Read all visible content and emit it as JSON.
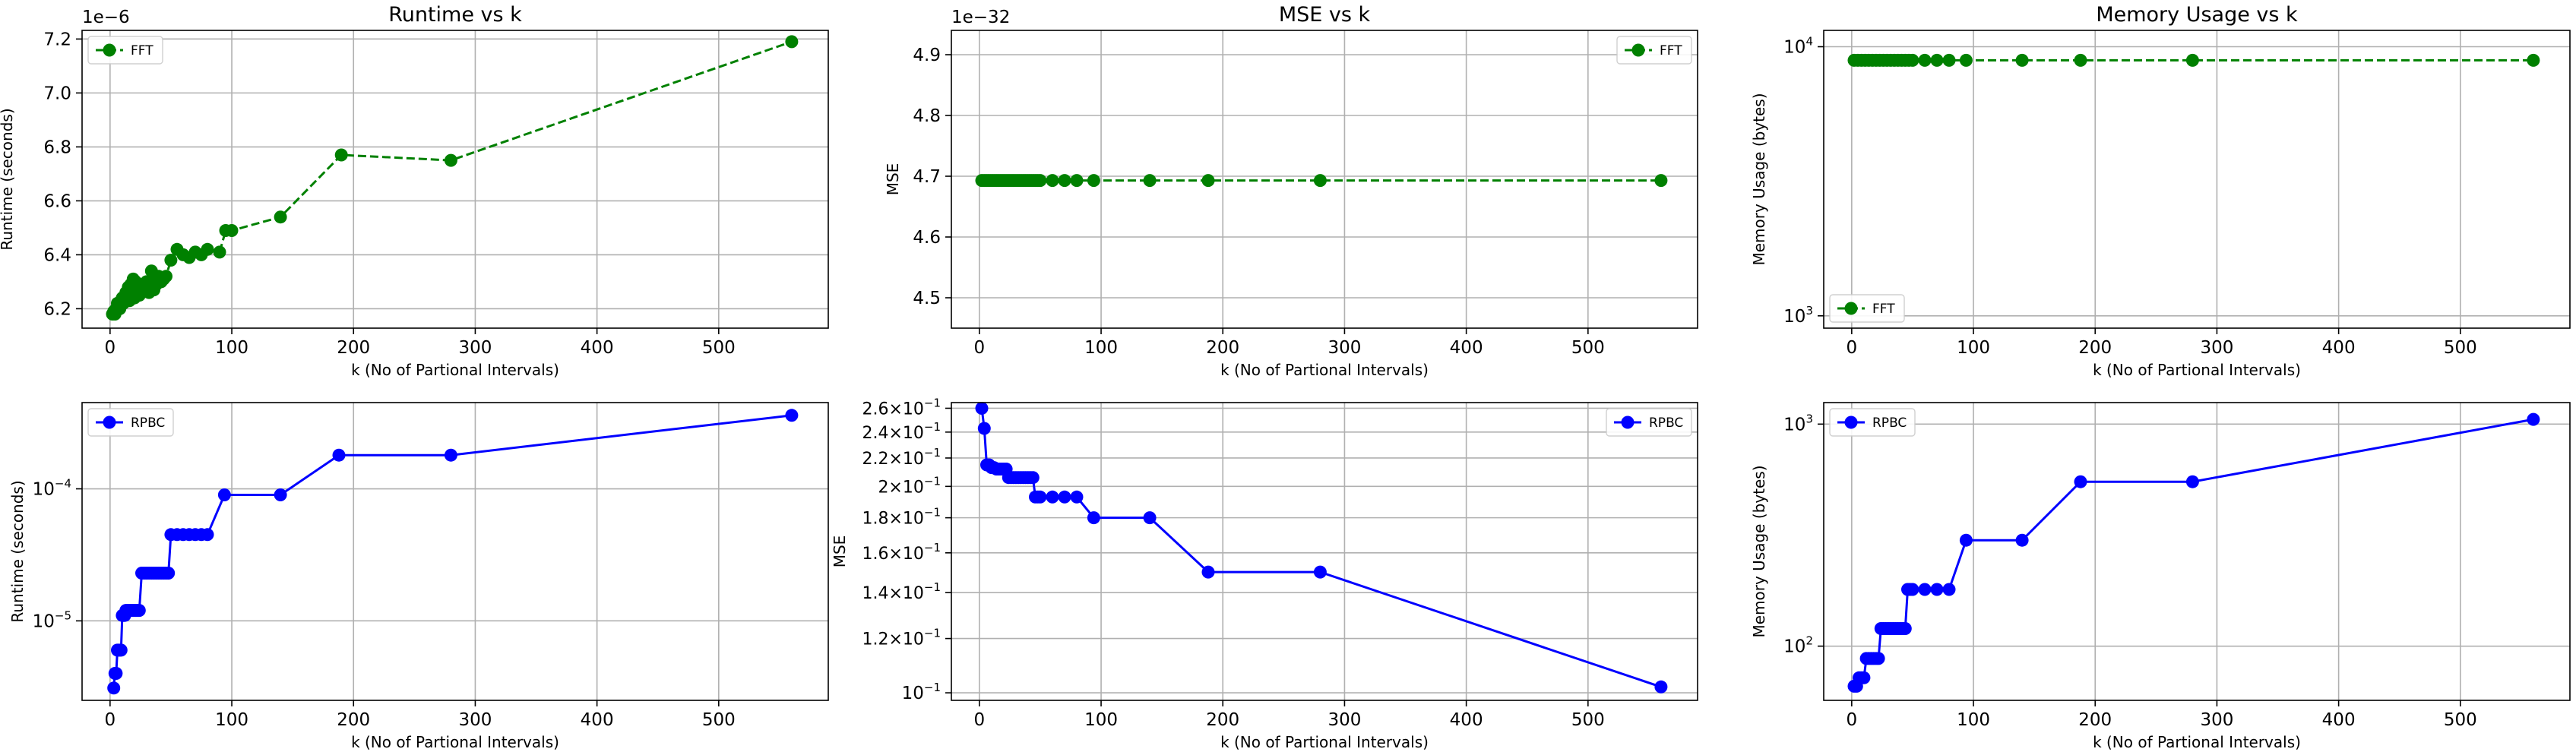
{
  "chart_data": [
    {
      "id": "runtime-fft",
      "type": "line",
      "title": "Runtime vs k",
      "xlabel": "k (No of Partional Intervals)",
      "ylabel": "Runtime (seconds)",
      "offset_text": "1e−6",
      "yscale": "linear",
      "xlim": [
        -23,
        590
      ],
      "ylim": [
        6.128,
        7.232
      ],
      "xticks": [
        0,
        100,
        200,
        300,
        400,
        500
      ],
      "xtick_labels": [
        "0",
        "100",
        "200",
        "300",
        "400",
        "500"
      ],
      "yticks": [
        6.2,
        6.4,
        6.6,
        6.8,
        7.0,
        7.2
      ],
      "ytick_labels": [
        "6.2",
        "6.4",
        "6.6",
        "6.8",
        "7.0",
        "7.2"
      ],
      "grid": true,
      "legend_position": "top-left",
      "series": [
        {
          "name": "FFT",
          "color": "#008000",
          "linestyle": "dashed",
          "x": [
            2,
            3,
            4,
            5,
            6,
            7,
            8,
            9,
            10,
            11,
            12,
            13,
            14,
            15,
            16,
            17,
            18,
            19,
            20,
            21,
            22,
            23,
            24,
            25,
            26,
            28,
            30,
            32,
            34,
            36,
            38,
            40,
            42,
            44,
            46,
            50,
            55,
            60,
            65,
            70,
            75,
            80,
            90,
            95,
            100,
            140,
            190,
            280,
            560
          ],
          "y": [
            6.18,
            6.19,
            6.18,
            6.2,
            6.22,
            6.21,
            6.2,
            6.23,
            6.24,
            6.22,
            6.24,
            6.26,
            6.25,
            6.28,
            6.23,
            6.29,
            6.26,
            6.31,
            6.24,
            6.3,
            6.28,
            6.27,
            6.25,
            6.29,
            6.26,
            6.27,
            6.3,
            6.26,
            6.34,
            6.27,
            6.29,
            6.32,
            6.3,
            6.31,
            6.32,
            6.38,
            6.42,
            6.4,
            6.39,
            6.41,
            6.4,
            6.42,
            6.41,
            6.49,
            6.49,
            6.54,
            6.77,
            6.75,
            7.19
          ]
        }
      ]
    },
    {
      "id": "mse-fft",
      "type": "line",
      "title": "MSE vs k",
      "xlabel": "k (No of Partional Intervals)",
      "ylabel": "MSE",
      "offset_text": "1e−32",
      "yscale": "linear",
      "xlim": [
        -23,
        590
      ],
      "ylim": [
        4.45,
        4.94
      ],
      "xticks": [
        0,
        100,
        200,
        300,
        400,
        500
      ],
      "xtick_labels": [
        "0",
        "100",
        "200",
        "300",
        "400",
        "500"
      ],
      "yticks": [
        4.5,
        4.6,
        4.7,
        4.8,
        4.9
      ],
      "ytick_labels": [
        "4.5",
        "4.6",
        "4.7",
        "4.8",
        "4.9"
      ],
      "grid": true,
      "legend_position": "top-right",
      "series": [
        {
          "name": "FFT",
          "color": "#008000",
          "linestyle": "dashed",
          "x": [
            2,
            4,
            6,
            8,
            10,
            12,
            14,
            16,
            18,
            20,
            22,
            24,
            26,
            28,
            30,
            32,
            34,
            36,
            38,
            40,
            42,
            44,
            46,
            48,
            50,
            60,
            70,
            80,
            94,
            140,
            188,
            280,
            560
          ],
          "y": [
            4.693,
            4.693,
            4.693,
            4.693,
            4.693,
            4.693,
            4.693,
            4.693,
            4.693,
            4.693,
            4.693,
            4.693,
            4.693,
            4.693,
            4.693,
            4.693,
            4.693,
            4.693,
            4.693,
            4.693,
            4.693,
            4.693,
            4.693,
            4.693,
            4.693,
            4.693,
            4.693,
            4.693,
            4.693,
            4.693,
            4.693,
            4.693,
            4.693
          ]
        }
      ]
    },
    {
      "id": "memory-fft",
      "type": "line",
      "title": "Memory Usage vs k",
      "xlabel": "k (No of Partional Intervals)",
      "ylabel": "Memory Usage (bytes)",
      "offset_text": "",
      "yscale": "log",
      "xlim": [
        -23,
        590
      ],
      "ylim": [
        900,
        11500
      ],
      "xticks": [
        0,
        100,
        200,
        300,
        400,
        500
      ],
      "xtick_labels": [
        "0",
        "100",
        "200",
        "300",
        "400",
        "500"
      ],
      "yticks": [
        1000,
        10000
      ],
      "ytick_labels": [
        [
          "10",
          "3"
        ],
        [
          "10",
          "4"
        ]
      ],
      "grid": true,
      "legend_position": "bottom-left",
      "series": [
        {
          "name": "FFT",
          "color": "#008000",
          "linestyle": "dashed",
          "x": [
            2,
            5,
            8,
            11,
            14,
            17,
            20,
            23,
            26,
            29,
            32,
            35,
            38,
            41,
            44,
            47,
            50,
            60,
            70,
            80,
            94,
            140,
            188,
            280,
            560
          ],
          "y": [
            8900,
            8900,
            8900,
            8900,
            8900,
            8900,
            8900,
            8900,
            8900,
            8900,
            8900,
            8900,
            8900,
            8900,
            8900,
            8900,
            8900,
            8900,
            8900,
            8900,
            8900,
            8900,
            8900,
            8900,
            8900
          ]
        }
      ]
    },
    {
      "id": "runtime-rpbc",
      "type": "line",
      "title": "",
      "xlabel": "k (No of Partional Intervals)",
      "ylabel": "Runtime (seconds)",
      "offset_text": "",
      "yscale": "log",
      "xlim": [
        -23,
        590
      ],
      "ylim": [
        2.5e-06,
        0.00045
      ],
      "xticks": [
        0,
        100,
        200,
        300,
        400,
        500
      ],
      "xtick_labels": [
        "0",
        "100",
        "200",
        "300",
        "400",
        "500"
      ],
      "yticks": [
        1e-05,
        0.0001
      ],
      "ytick_labels": [
        [
          "10",
          "−5"
        ],
        [
          "10",
          "−4"
        ]
      ],
      "grid": true,
      "legend_position": "top-left",
      "series": [
        {
          "name": "RPBC",
          "color": "#0000ff",
          "linestyle": "solid",
          "x": [
            3,
            4,
            5,
            6,
            7,
            8,
            9,
            10,
            11,
            12,
            13,
            14,
            15,
            16,
            17,
            18,
            19,
            20,
            21,
            22,
            23,
            24,
            26,
            28,
            30,
            32,
            34,
            36,
            38,
            40,
            42,
            44,
            46,
            48,
            50,
            55,
            60,
            65,
            70,
            75,
            80,
            94,
            140,
            188,
            280,
            560
          ],
          "y": [
            3.1e-06,
            4e-06,
            4e-06,
            6e-06,
            6e-06,
            6e-06,
            6e-06,
            1.1e-05,
            1.1e-05,
            1.1e-05,
            1.2e-05,
            1.2e-05,
            1.2e-05,
            1.2e-05,
            1.2e-05,
            1.2e-05,
            1.2e-05,
            1.2e-05,
            1.2e-05,
            1.2e-05,
            1.2e-05,
            1.2e-05,
            2.3e-05,
            2.3e-05,
            2.3e-05,
            2.3e-05,
            2.3e-05,
            2.3e-05,
            2.3e-05,
            2.3e-05,
            2.3e-05,
            2.3e-05,
            2.3e-05,
            2.3e-05,
            4.5e-05,
            4.5e-05,
            4.5e-05,
            4.5e-05,
            4.5e-05,
            4.5e-05,
            4.5e-05,
            9e-05,
            9e-05,
            0.00018,
            0.00018,
            0.00036
          ]
        }
      ]
    },
    {
      "id": "mse-rpbc",
      "type": "line",
      "title": "",
      "xlabel": "k (No of Partional Intervals)",
      "ylabel": "MSE",
      "offset_text": "",
      "yscale": "log",
      "xlim": [
        -23,
        590
      ],
      "ylim": [
        0.0975,
        0.265
      ],
      "xticks": [
        0,
        100,
        200,
        300,
        400,
        500
      ],
      "xtick_labels": [
        "0",
        "100",
        "200",
        "300",
        "400",
        "500"
      ],
      "yticks": [
        0.1,
        0.12,
        0.14,
        0.16,
        0.18,
        0.2,
        0.22,
        0.24,
        0.26
      ],
      "ytick_labels": [
        [
          "10",
          "−1"
        ],
        [
          "1.2×10",
          "−1"
        ],
        [
          "1.4×10",
          "−1"
        ],
        [
          "1.6×10",
          "−1"
        ],
        [
          "1.8×10",
          "−1"
        ],
        [
          "2×10",
          "−1"
        ],
        [
          "2.2×10",
          "−1"
        ],
        [
          "2.4×10",
          "−1"
        ],
        [
          "2.6×10",
          "−1"
        ]
      ],
      "grid": true,
      "legend_position": "top-right",
      "series": [
        {
          "name": "RPBC",
          "color": "#0000ff",
          "linestyle": "solid",
          "x": [
            2,
            4,
            6,
            8,
            10,
            12,
            14,
            16,
            18,
            20,
            22,
            24,
            26,
            28,
            30,
            32,
            34,
            36,
            38,
            40,
            42,
            44,
            46,
            48,
            50,
            60,
            70,
            80,
            94,
            140,
            188,
            280,
            560
          ],
          "y": [
            0.26,
            0.243,
            0.215,
            0.215,
            0.213,
            0.213,
            0.212,
            0.212,
            0.212,
            0.212,
            0.212,
            0.206,
            0.206,
            0.206,
            0.206,
            0.206,
            0.206,
            0.206,
            0.206,
            0.206,
            0.206,
            0.206,
            0.193,
            0.193,
            0.193,
            0.193,
            0.193,
            0.193,
            0.18,
            0.18,
            0.15,
            0.15,
            0.102
          ]
        }
      ]
    },
    {
      "id": "memory-rpbc",
      "type": "line",
      "title": "",
      "xlabel": "k (No of Partional Intervals)",
      "ylabel": "Memory Usage (bytes)",
      "offset_text": "",
      "yscale": "log",
      "xlim": [
        -23,
        590
      ],
      "ylim": [
        57,
        1250
      ],
      "xticks": [
        0,
        100,
        200,
        300,
        400,
        500
      ],
      "xtick_labels": [
        "0",
        "100",
        "200",
        "300",
        "400",
        "500"
      ],
      "yticks": [
        100,
        1000
      ],
      "ytick_labels": [
        [
          "10",
          "2"
        ],
        [
          "10",
          "3"
        ]
      ],
      "grid": true,
      "legend_position": "top-left",
      "series": [
        {
          "name": "RPBC",
          "color": "#0000ff",
          "linestyle": "solid",
          "x": [
            2,
            4,
            6,
            8,
            10,
            12,
            14,
            16,
            18,
            20,
            22,
            24,
            26,
            28,
            30,
            32,
            34,
            36,
            38,
            40,
            42,
            44,
            46,
            48,
            50,
            60,
            70,
            80,
            94,
            140,
            188,
            280,
            560
          ],
          "y": [
            66,
            66,
            72,
            72,
            72,
            88,
            88,
            88,
            88,
            88,
            88,
            120,
            120,
            120,
            120,
            120,
            120,
            120,
            120,
            120,
            120,
            120,
            180,
            180,
            180,
            180,
            180,
            180,
            300,
            300,
            550,
            550,
            1050
          ]
        }
      ]
    }
  ]
}
